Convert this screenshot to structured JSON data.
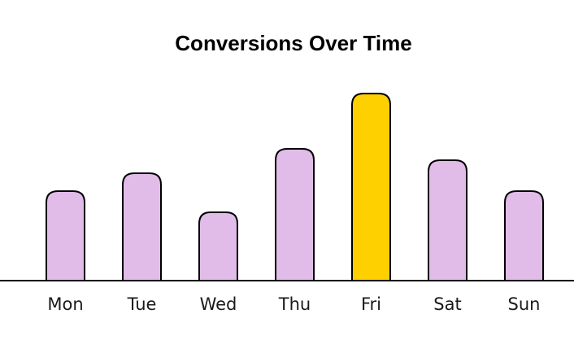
{
  "chart_data": {
    "type": "bar",
    "title": "Conversions Over Time",
    "categories": [
      "Mon",
      "Tue",
      "Wed",
      "Thu",
      "Fri",
      "Sat",
      "Sun"
    ],
    "values": [
      110,
      132,
      84,
      162,
      230,
      148,
      110
    ],
    "highlight_index": 4,
    "colors": {
      "bar": "#e2bce9",
      "highlight": "#ffd000",
      "stroke": "#000000",
      "axis": "#000000"
    },
    "xlabel": "",
    "ylabel": "",
    "grid": false
  }
}
